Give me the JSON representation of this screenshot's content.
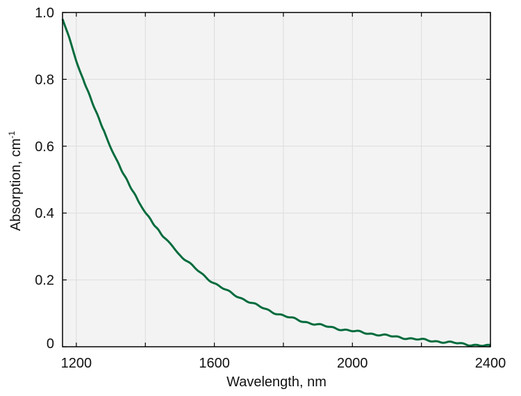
{
  "chart_data": {
    "type": "line",
    "xlabel": "Wavelength, nm",
    "ylabel_main": "Absorption, cm",
    "ylabel_sup": "-1",
    "xlim": [
      1160,
      2400
    ],
    "ylim": [
      0,
      1.0
    ],
    "x_ticks": [
      1200,
      1600,
      2000,
      2400
    ],
    "x_minor_ticks": [
      1400,
      1800,
      2200
    ],
    "x_tick_labels": [
      "1200",
      "1600",
      "2000",
      "2400"
    ],
    "y_ticks": [
      0,
      0.2,
      0.4,
      0.6,
      0.8,
      1.0
    ],
    "y_tick_labels": [
      "0",
      "0.2",
      "0.4",
      "0.6",
      "0.8",
      "1.0"
    ],
    "grid": true,
    "colors": {
      "line": "#006b3c",
      "plot_bg": "#f3f3f3",
      "grid": "#dcdcdc",
      "axis": "#000000"
    },
    "series": [
      {
        "x": [
          1160,
          1180,
          1200,
          1220,
          1250,
          1280,
          1300,
          1320,
          1350,
          1380,
          1400,
          1430,
          1460,
          1500,
          1550,
          1600,
          1650,
          1700,
          1750,
          1800,
          1850,
          1900,
          1950,
          2000,
          2050,
          2100,
          2150,
          2200,
          2250,
          2300,
          2350,
          2400
        ],
        "y": [
          0.98,
          0.92,
          0.855,
          0.8,
          0.72,
          0.645,
          0.595,
          0.55,
          0.49,
          0.435,
          0.405,
          0.36,
          0.32,
          0.275,
          0.23,
          0.19,
          0.16,
          0.135,
          0.112,
          0.093,
          0.078,
          0.066,
          0.056,
          0.047,
          0.04,
          0.033,
          0.027,
          0.021,
          0.016,
          0.011,
          0.006,
          0.002
        ]
      }
    ]
  }
}
